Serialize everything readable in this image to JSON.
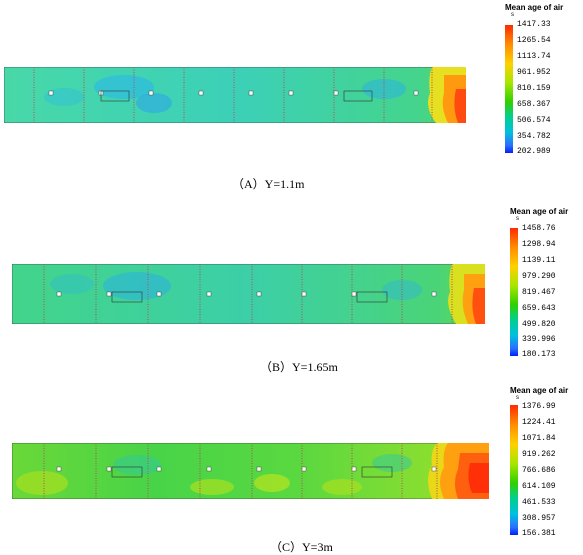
{
  "panels": [
    {
      "id": "A",
      "caption": "（A）Y=1.1m",
      "legend_title": "Mean age of air",
      "legend_unit": "s",
      "legend_ticks": [
        "1417.33",
        "1265.54",
        "1113.74",
        "961.952",
        "810.159",
        "658.367",
        "506.574",
        "354.782",
        "202.989"
      ]
    },
    {
      "id": "B",
      "caption": "（B）Y=1.65m",
      "legend_title": "Mean age of air",
      "legend_unit": "s",
      "legend_ticks": [
        "1458.76",
        "1298.94",
        "1139.11",
        "979.290",
        "819.467",
        "659.643",
        "499.820",
        "339.996",
        "180.173"
      ]
    },
    {
      "id": "C",
      "caption": "（C）Y=3m",
      "legend_title": "Mean age of air",
      "legend_unit": "s",
      "legend_ticks": [
        "1376.99",
        "1224.41",
        "1071.84",
        "919.262",
        "766.686",
        "614.109",
        "461.533",
        "308.957",
        "156.381"
      ]
    }
  ],
  "colors": {
    "scale": [
      "#ff2a00",
      "#ff8c00",
      "#ffd000",
      "#b8e600",
      "#44d400",
      "#00d080",
      "#00c8d8",
      "#2a8cff",
      "#0020ff"
    ],
    "base_A": "#3cd6a0",
    "base_B": "#3ad488",
    "base_C": "#4ed640",
    "hot": "#ff5a10"
  }
}
